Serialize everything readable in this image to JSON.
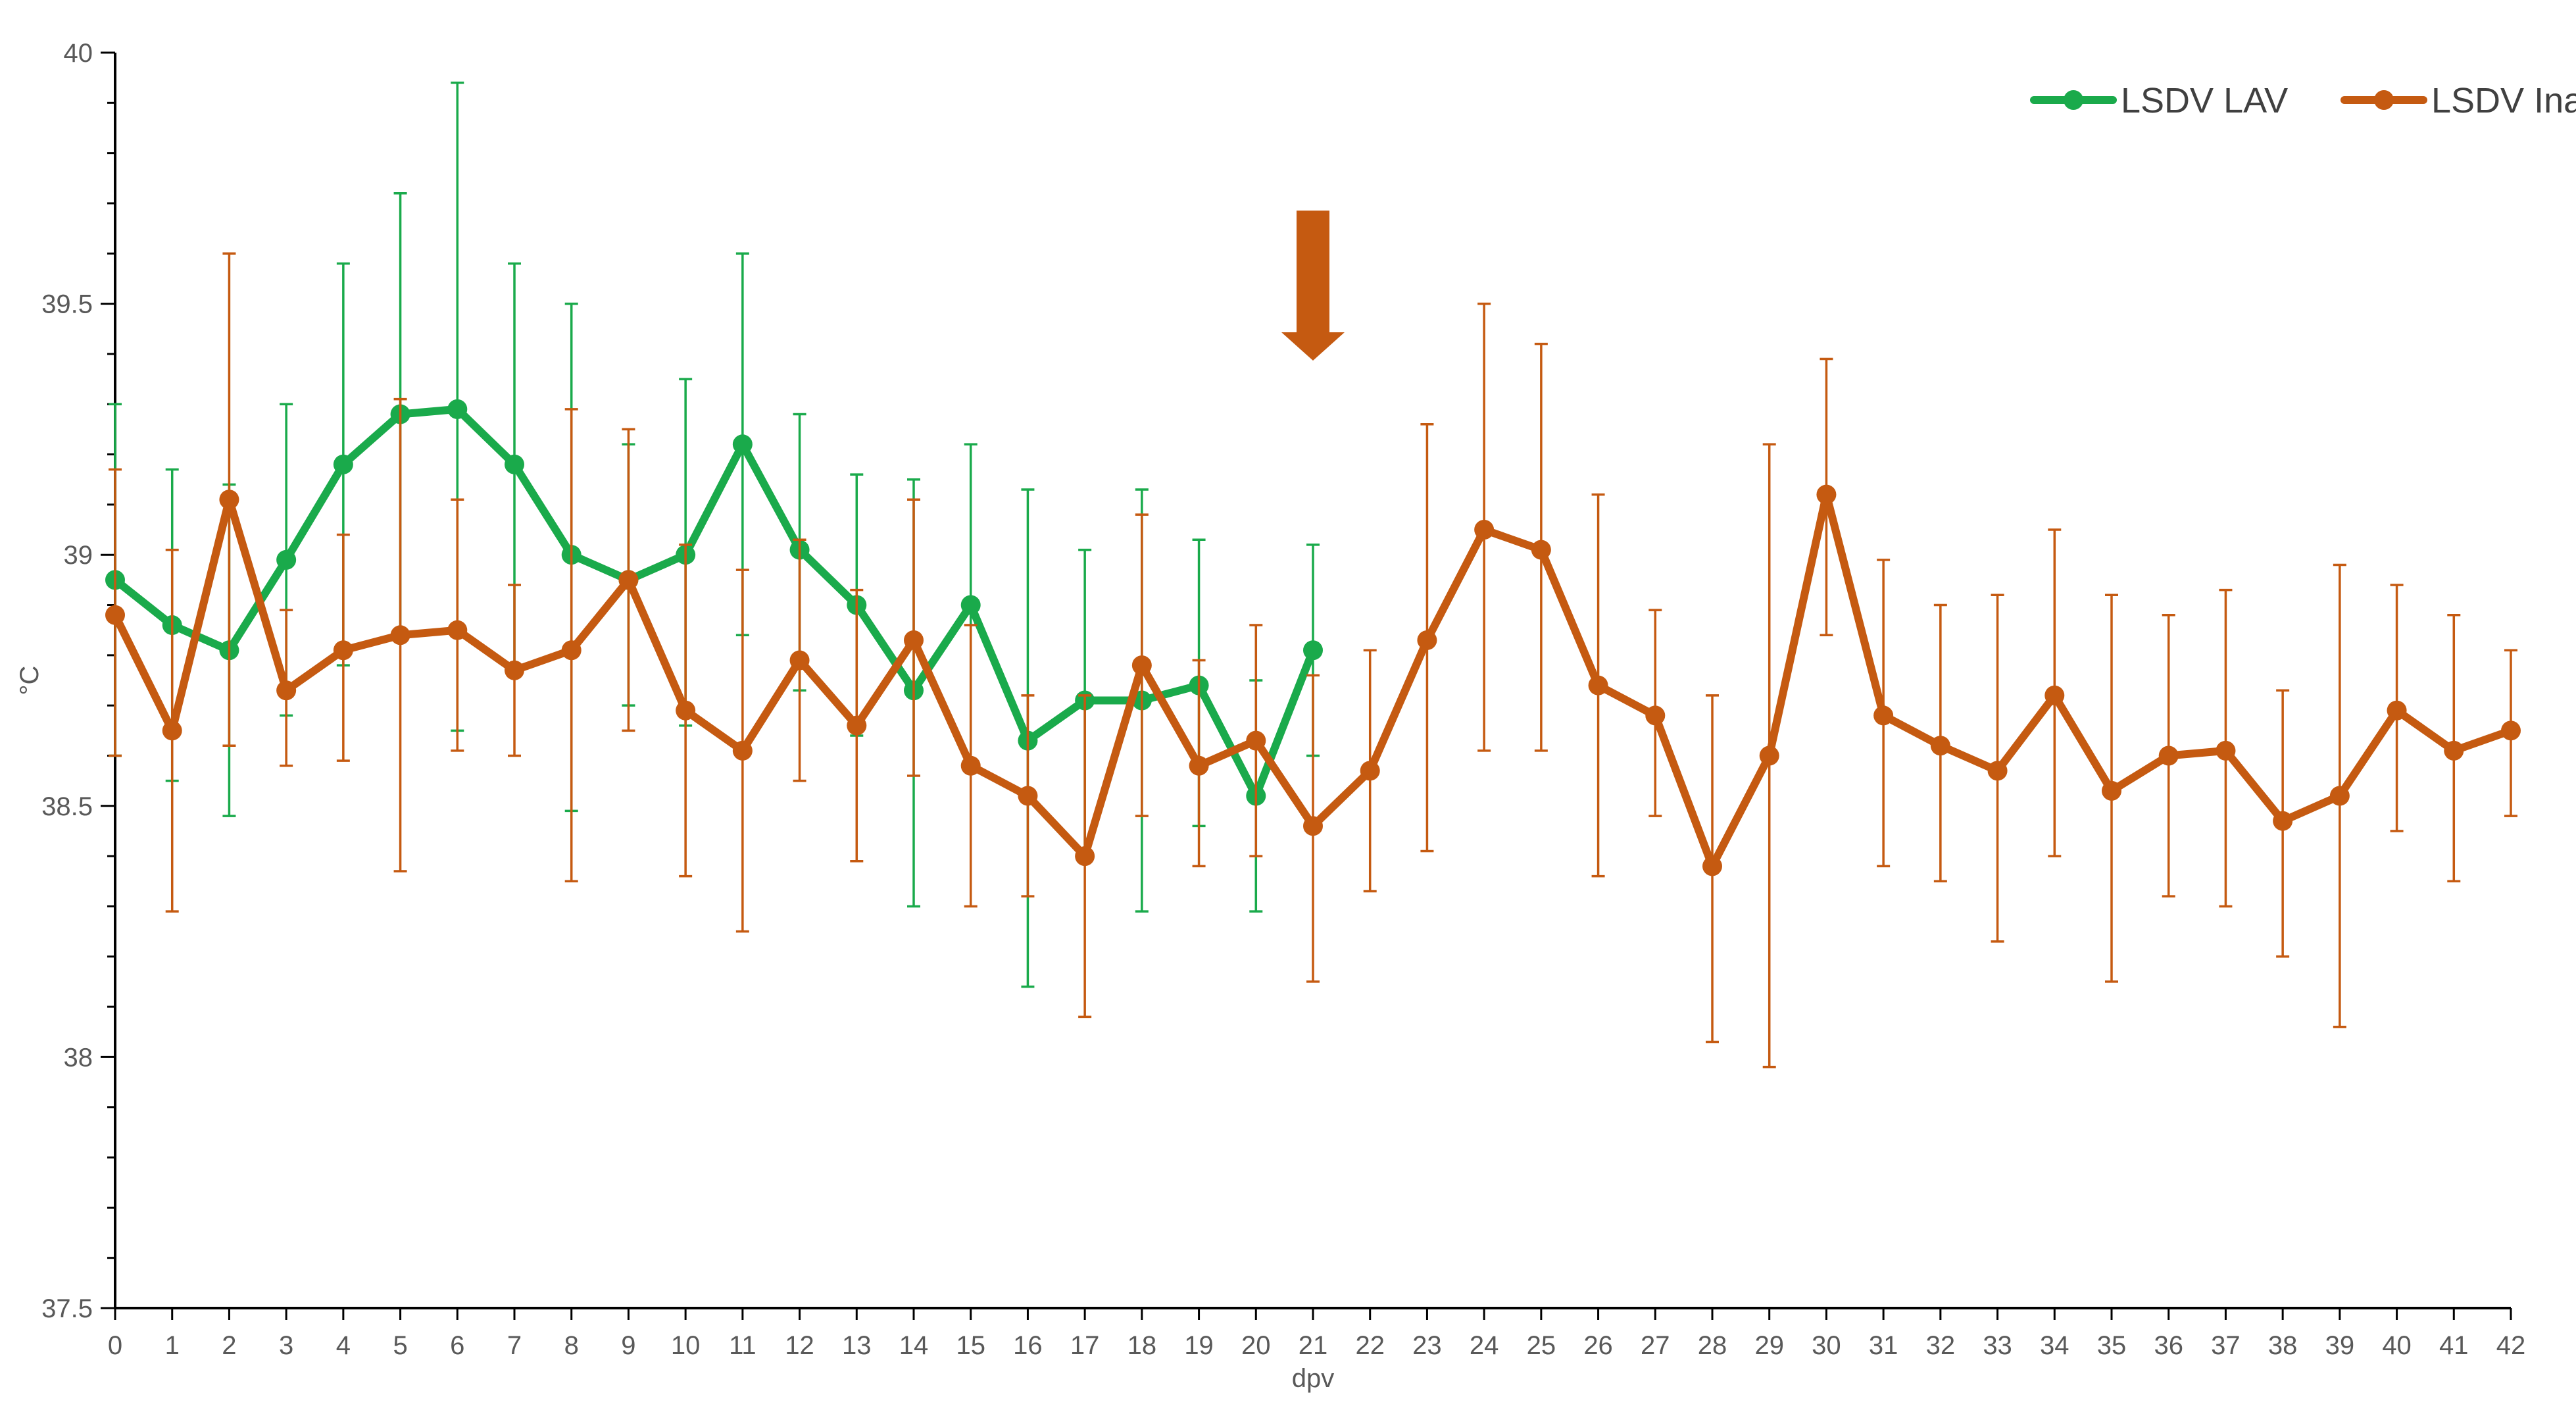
{
  "chart_data": {
    "type": "line",
    "xlabel": "dpv",
    "ylabel": "°C",
    "ylim": [
      37.5,
      40
    ],
    "yticks": [
      "37.5",
      "38",
      "38.5",
      "39",
      "39.5",
      "40"
    ],
    "x": [
      0,
      1,
      2,
      3,
      4,
      5,
      6,
      7,
      8,
      9,
      10,
      11,
      12,
      13,
      14,
      15,
      16,
      17,
      18,
      19,
      20,
      21,
      22,
      23,
      24,
      25,
      26,
      27,
      28,
      29,
      30,
      31,
      32,
      33,
      34,
      35,
      36,
      37,
      38,
      39,
      40,
      41,
      42
    ],
    "grid": false,
    "legend_position": "top-right",
    "series": [
      {
        "name": "LSDV LAV",
        "color": "#1AAA4B",
        "x": [
          0,
          1,
          2,
          3,
          4,
          5,
          6,
          7,
          8,
          9,
          10,
          11,
          12,
          13,
          14,
          15,
          16,
          17,
          18,
          19,
          20,
          21
        ],
        "values": [
          38.95,
          38.86,
          38.81,
          38.99,
          39.18,
          39.28,
          39.29,
          39.18,
          39.0,
          38.95,
          39.0,
          39.22,
          39.01,
          38.9,
          38.73,
          38.9,
          38.63,
          38.71,
          38.71,
          38.74,
          38.52,
          38.81
        ],
        "error_low": [
          38.6,
          38.55,
          38.48,
          38.68,
          38.78,
          38.84,
          38.65,
          38.78,
          38.49,
          38.7,
          38.66,
          38.84,
          38.73,
          38.64,
          38.3,
          38.58,
          38.14,
          38.4,
          38.29,
          38.46,
          38.29,
          38.6
        ],
        "error_high": [
          39.3,
          39.17,
          39.14,
          39.3,
          39.58,
          39.72,
          39.94,
          39.58,
          39.5,
          39.22,
          39.35,
          39.6,
          39.28,
          39.16,
          39.15,
          39.22,
          39.13,
          39.01,
          39.13,
          39.03,
          38.75,
          39.02
        ]
      },
      {
        "name": "LSDV Inac",
        "color": "#C55A11",
        "x": [
          0,
          1,
          2,
          3,
          4,
          5,
          6,
          7,
          8,
          9,
          10,
          11,
          12,
          13,
          14,
          15,
          16,
          17,
          18,
          19,
          20,
          21,
          22,
          23,
          24,
          25,
          26,
          27,
          28,
          29,
          30,
          31,
          32,
          33,
          34,
          35,
          36,
          37,
          38,
          39,
          40,
          41,
          42
        ],
        "values": [
          38.88,
          38.65,
          39.11,
          38.73,
          38.81,
          38.84,
          38.85,
          38.77,
          38.81,
          38.95,
          38.69,
          38.61,
          38.79,
          38.66,
          38.83,
          38.58,
          38.52,
          38.4,
          38.78,
          38.58,
          38.63,
          38.46,
          38.57,
          38.83,
          39.05,
          39.01,
          38.74,
          38.68,
          38.38,
          38.6,
          39.12,
          38.68,
          38.62,
          38.57,
          38.72,
          38.53,
          38.6,
          38.61,
          38.47,
          38.52,
          38.69,
          38.61,
          38.65
        ],
        "error_low": [
          38.6,
          38.29,
          38.62,
          38.58,
          38.59,
          38.37,
          38.61,
          38.6,
          38.35,
          38.65,
          38.36,
          38.25,
          38.55,
          38.39,
          38.56,
          38.3,
          38.32,
          38.08,
          38.48,
          38.38,
          38.4,
          38.15,
          38.33,
          38.41,
          38.61,
          38.61,
          38.36,
          38.48,
          38.03,
          37.98,
          38.84,
          38.38,
          38.35,
          38.23,
          38.4,
          38.15,
          38.32,
          38.3,
          38.2,
          38.06,
          38.45,
          38.35,
          38.48
        ],
        "error_high": [
          39.17,
          39.01,
          39.6,
          38.89,
          39.04,
          39.31,
          39.11,
          38.94,
          39.29,
          39.25,
          39.02,
          38.97,
          39.03,
          38.93,
          39.11,
          38.86,
          38.72,
          38.72,
          39.08,
          38.79,
          38.86,
          38.76,
          38.81,
          39.26,
          39.5,
          39.42,
          39.12,
          38.89,
          38.72,
          39.22,
          39.39,
          38.99,
          38.9,
          38.92,
          39.05,
          38.92,
          38.88,
          38.93,
          38.73,
          38.98,
          38.94,
          38.88,
          38.81
        ]
      }
    ],
    "annotation": {
      "type": "down-arrow",
      "x": 21,
      "color": "#C55A11"
    }
  }
}
